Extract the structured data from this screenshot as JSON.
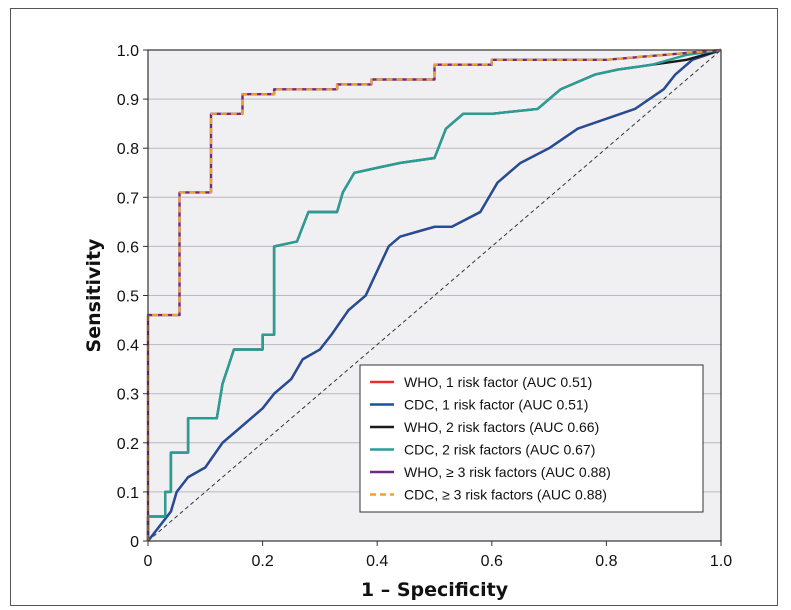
{
  "chart_data": {
    "type": "line",
    "title": "",
    "xlabel": "1 – Specificity",
    "ylabel": "Sensitivity",
    "xlim": [
      0,
      1
    ],
    "ylim": [
      0,
      1
    ],
    "x_ticks": [
      "0",
      "0.2",
      "0.4",
      "0.6",
      "0.8",
      "1.0"
    ],
    "y_ticks": [
      "0",
      "0.1",
      "0.2",
      "0.3",
      "0.4",
      "0.5",
      "0.6",
      "0.7",
      "0.8",
      "0.9",
      "1.0"
    ],
    "grid": "horizontal",
    "legend_position": "bottom-right",
    "reference_line": {
      "style": "dashed",
      "color": "#333333",
      "points": [
        [
          0,
          0
        ],
        [
          1,
          1
        ]
      ]
    },
    "series": [
      {
        "name": "WHO, 1 risk factor (AUC 0.51)",
        "color": "#e8302a",
        "dash": false,
        "points": [
          [
            0,
            0
          ],
          [
            0.02,
            0.03
          ],
          [
            0.04,
            0.06
          ],
          [
            0.05,
            0.1
          ],
          [
            0.07,
            0.13
          ],
          [
            0.1,
            0.15
          ],
          [
            0.13,
            0.2
          ],
          [
            0.17,
            0.24
          ],
          [
            0.2,
            0.27
          ],
          [
            0.22,
            0.3
          ],
          [
            0.25,
            0.33
          ],
          [
            0.27,
            0.37
          ],
          [
            0.3,
            0.39
          ],
          [
            0.32,
            0.42
          ],
          [
            0.35,
            0.47
          ],
          [
            0.38,
            0.5
          ],
          [
            0.4,
            0.55
          ],
          [
            0.42,
            0.6
          ],
          [
            0.44,
            0.62
          ],
          [
            0.47,
            0.63
          ],
          [
            0.5,
            0.64
          ],
          [
            0.53,
            0.64
          ],
          [
            0.58,
            0.67
          ],
          [
            0.61,
            0.73
          ],
          [
            0.65,
            0.77
          ],
          [
            0.7,
            0.8
          ],
          [
            0.75,
            0.84
          ],
          [
            0.8,
            0.86
          ],
          [
            0.85,
            0.88
          ],
          [
            0.9,
            0.92
          ],
          [
            0.92,
            0.95
          ],
          [
            0.95,
            0.98
          ],
          [
            1,
            1
          ]
        ]
      },
      {
        "name": "CDC, 1 risk factor (AUC 0.51)",
        "color": "#1f4e9a",
        "dash": false,
        "points": [
          [
            0,
            0
          ],
          [
            0.02,
            0.03
          ],
          [
            0.04,
            0.06
          ],
          [
            0.05,
            0.1
          ],
          [
            0.07,
            0.13
          ],
          [
            0.1,
            0.15
          ],
          [
            0.13,
            0.2
          ],
          [
            0.17,
            0.24
          ],
          [
            0.2,
            0.27
          ],
          [
            0.22,
            0.3
          ],
          [
            0.25,
            0.33
          ],
          [
            0.27,
            0.37
          ],
          [
            0.3,
            0.39
          ],
          [
            0.32,
            0.42
          ],
          [
            0.35,
            0.47
          ],
          [
            0.38,
            0.5
          ],
          [
            0.4,
            0.55
          ],
          [
            0.42,
            0.6
          ],
          [
            0.44,
            0.62
          ],
          [
            0.47,
            0.63
          ],
          [
            0.5,
            0.64
          ],
          [
            0.53,
            0.64
          ],
          [
            0.58,
            0.67
          ],
          [
            0.61,
            0.73
          ],
          [
            0.65,
            0.77
          ],
          [
            0.7,
            0.8
          ],
          [
            0.75,
            0.84
          ],
          [
            0.8,
            0.86
          ],
          [
            0.85,
            0.88
          ],
          [
            0.9,
            0.92
          ],
          [
            0.92,
            0.95
          ],
          [
            0.95,
            0.98
          ],
          [
            1,
            1
          ]
        ]
      },
      {
        "name": "WHO, 2 risk factors (AUC 0.66)",
        "color": "#1a1a1a",
        "dash": false,
        "points": [
          [
            0,
            0
          ],
          [
            0,
            0.05
          ],
          [
            0.03,
            0.05
          ],
          [
            0.03,
            0.1
          ],
          [
            0.04,
            0.1
          ],
          [
            0.04,
            0.18
          ],
          [
            0.07,
            0.18
          ],
          [
            0.07,
            0.25
          ],
          [
            0.12,
            0.25
          ],
          [
            0.13,
            0.32
          ],
          [
            0.15,
            0.39
          ],
          [
            0.2,
            0.39
          ],
          [
            0.2,
            0.42
          ],
          [
            0.22,
            0.42
          ],
          [
            0.22,
            0.6
          ],
          [
            0.26,
            0.61
          ],
          [
            0.28,
            0.67
          ],
          [
            0.33,
            0.67
          ],
          [
            0.34,
            0.71
          ],
          [
            0.36,
            0.75
          ],
          [
            0.4,
            0.76
          ],
          [
            0.44,
            0.77
          ],
          [
            0.5,
            0.78
          ],
          [
            0.52,
            0.84
          ],
          [
            0.55,
            0.87
          ],
          [
            0.6,
            0.87
          ],
          [
            0.68,
            0.88
          ],
          [
            0.72,
            0.92
          ],
          [
            0.78,
            0.95
          ],
          [
            0.82,
            0.96
          ],
          [
            0.88,
            0.97
          ],
          [
            0.94,
            0.98
          ],
          [
            1,
            1
          ]
        ]
      },
      {
        "name": "CDC, 2 risk factors (AUC 0.67)",
        "color": "#2a9e96",
        "dash": false,
        "points": [
          [
            0,
            0
          ],
          [
            0,
            0.05
          ],
          [
            0.03,
            0.05
          ],
          [
            0.03,
            0.1
          ],
          [
            0.04,
            0.1
          ],
          [
            0.04,
            0.18
          ],
          [
            0.07,
            0.18
          ],
          [
            0.07,
            0.25
          ],
          [
            0.12,
            0.25
          ],
          [
            0.13,
            0.32
          ],
          [
            0.15,
            0.39
          ],
          [
            0.2,
            0.39
          ],
          [
            0.2,
            0.42
          ],
          [
            0.22,
            0.42
          ],
          [
            0.22,
            0.6
          ],
          [
            0.26,
            0.61
          ],
          [
            0.28,
            0.67
          ],
          [
            0.33,
            0.67
          ],
          [
            0.34,
            0.71
          ],
          [
            0.36,
            0.75
          ],
          [
            0.4,
            0.76
          ],
          [
            0.44,
            0.77
          ],
          [
            0.5,
            0.78
          ],
          [
            0.52,
            0.84
          ],
          [
            0.55,
            0.87
          ],
          [
            0.6,
            0.87
          ],
          [
            0.68,
            0.88
          ],
          [
            0.72,
            0.92
          ],
          [
            0.78,
            0.95
          ],
          [
            0.82,
            0.96
          ],
          [
            0.88,
            0.97
          ],
          [
            0.94,
            0.99
          ],
          [
            1,
            1
          ]
        ]
      },
      {
        "name": "WHO, ≥ 3 risk factors (AUC 0.88)",
        "color": "#6b2a86",
        "dash": false,
        "points": [
          [
            0,
            0
          ],
          [
            0,
            0.46
          ],
          [
            0.055,
            0.46
          ],
          [
            0.055,
            0.71
          ],
          [
            0.11,
            0.71
          ],
          [
            0.11,
            0.87
          ],
          [
            0.165,
            0.87
          ],
          [
            0.165,
            0.91
          ],
          [
            0.22,
            0.91
          ],
          [
            0.22,
            0.92
          ],
          [
            0.33,
            0.92
          ],
          [
            0.33,
            0.93
          ],
          [
            0.39,
            0.93
          ],
          [
            0.39,
            0.94
          ],
          [
            0.5,
            0.94
          ],
          [
            0.5,
            0.97
          ],
          [
            0.6,
            0.97
          ],
          [
            0.6,
            0.98
          ],
          [
            0.8,
            0.98
          ],
          [
            0.9,
            0.99
          ],
          [
            1,
            1
          ]
        ]
      },
      {
        "name": "CDC, ≥ 3 risk factors (AUC 0.88)",
        "color": "#f0a030",
        "dash": true,
        "points": [
          [
            0,
            0
          ],
          [
            0,
            0.46
          ],
          [
            0.055,
            0.46
          ],
          [
            0.055,
            0.71
          ],
          [
            0.11,
            0.71
          ],
          [
            0.11,
            0.87
          ],
          [
            0.165,
            0.87
          ],
          [
            0.165,
            0.91
          ],
          [
            0.22,
            0.91
          ],
          [
            0.22,
            0.92
          ],
          [
            0.33,
            0.92
          ],
          [
            0.33,
            0.93
          ],
          [
            0.39,
            0.93
          ],
          [
            0.39,
            0.94
          ],
          [
            0.5,
            0.94
          ],
          [
            0.5,
            0.97
          ],
          [
            0.6,
            0.97
          ],
          [
            0.6,
            0.98
          ],
          [
            0.8,
            0.98
          ],
          [
            0.9,
            0.99
          ],
          [
            1,
            1
          ]
        ]
      }
    ]
  }
}
